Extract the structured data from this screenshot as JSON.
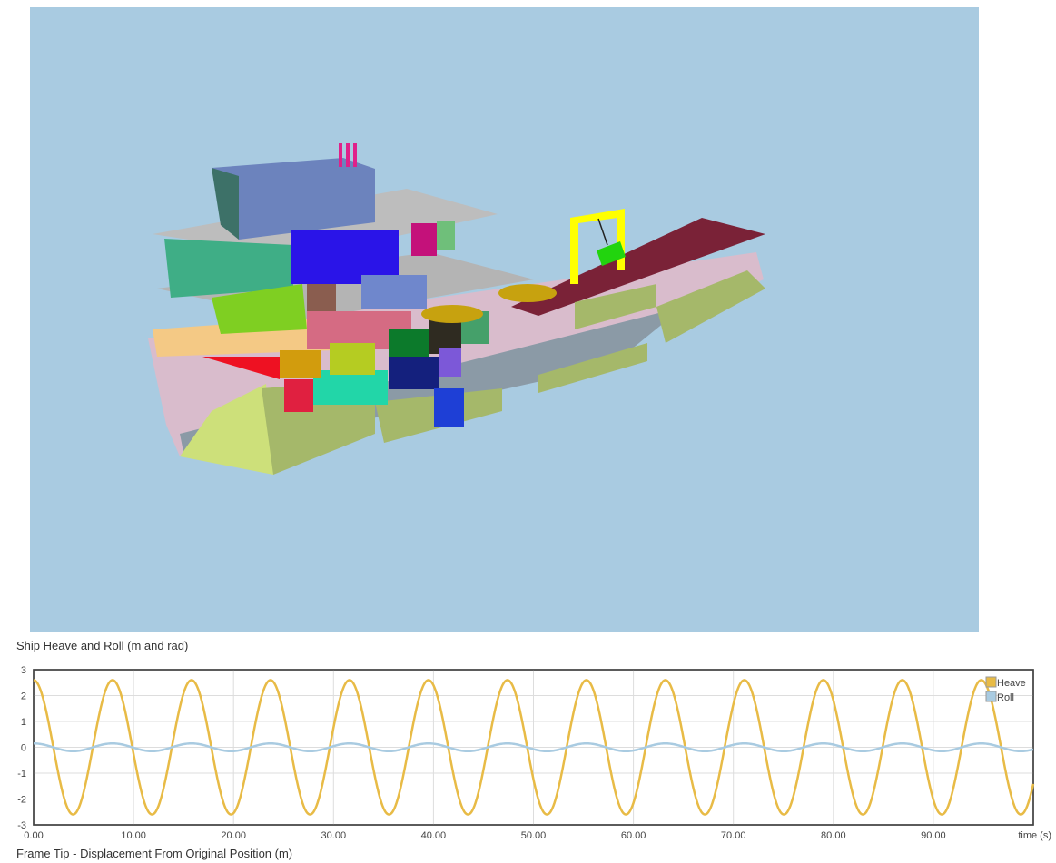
{
  "scene": {
    "background": "#a9cbe1"
  },
  "chart_data": [
    {
      "type": "line",
      "title": "Ship Heave and Roll (m and rad)",
      "xlabel": "time (s)",
      "ylabel": "",
      "xlim": [
        0,
        100
      ],
      "ylim": [
        -3,
        3
      ],
      "x_ticks": [
        "0.00",
        "10.00",
        "20.00",
        "30.00",
        "40.00",
        "50.00",
        "60.00",
        "70.00",
        "80.00",
        "90.00"
      ],
      "y_ticks": [
        "3",
        "2",
        "1",
        "0",
        "-1",
        "-2",
        "-3"
      ],
      "grid": true,
      "legend_position": "top-right",
      "series": [
        {
          "name": "Heave",
          "color": "#e8bb46",
          "amplitude": 2.6,
          "period": 7.9,
          "description_values": {
            "t0": 2.6,
            "first_trough_t": 3.9,
            "first_peak_t": 7.9
          }
        },
        {
          "name": "Roll",
          "color": "#a9cbe1",
          "amplitude": 0.15,
          "period": 7.9,
          "description_values": {
            "t0": 0.1
          }
        }
      ]
    },
    {
      "type": "line",
      "title": "Frame Tip - Displacement From Original Position (m)"
    }
  ]
}
